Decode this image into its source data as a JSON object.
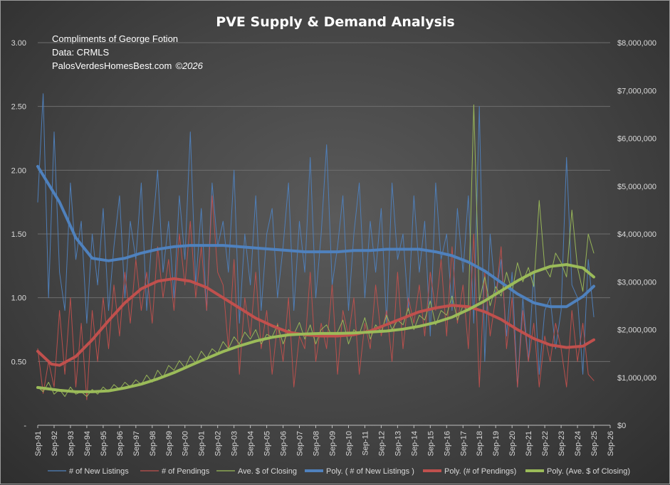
{
  "chart_data": {
    "type": "line",
    "title": "PVE Supply & Demand Analysis",
    "annotations": [
      "Compliments of George Fotion",
      "Data: CRMLS",
      "PalosVerdesHomesBest.com",
      "©2026"
    ],
    "y_left": {
      "ticks": [
        "-",
        "0.50",
        "1.00",
        "1.50",
        "2.00",
        "2.50",
        "3.00"
      ],
      "range": [
        0,
        3
      ]
    },
    "y_right": {
      "ticks": [
        "$0",
        "$1,000,000",
        "$2,000,000",
        "$3,000,000",
        "$4,000,000",
        "$5,000,000",
        "$6,000,000",
        "$7,000,000",
        "$8,000,000"
      ],
      "range": [
        0,
        8000000
      ]
    },
    "x_ticks": [
      "Sep-91",
      "Sep-92",
      "Sep-93",
      "Sep-94",
      "Sep-95",
      "Sep-96",
      "Sep-97",
      "Sep-98",
      "Sep-99",
      "Sep-00",
      "Sep-01",
      "Sep-02",
      "Sep-03",
      "Sep-04",
      "Sep-05",
      "Sep-06",
      "Sep-07",
      "Sep-08",
      "Sep-09",
      "Sep-10",
      "Sep-11",
      "Sep-12",
      "Sep-13",
      "Sep-14",
      "Sep-15",
      "Sep-16",
      "Sep-17",
      "Sep-18",
      "Sep-19",
      "Sep-20",
      "Sep-21",
      "Sep-22",
      "Sep-23",
      "Sep-24",
      "Sep-25",
      "Sep-26"
    ],
    "x_range": [
      1991.67,
      2026.67
    ],
    "grid": true,
    "legend_position": "bottom",
    "series": [
      {
        "name": "# of New Listings",
        "axis": "left",
        "color": "#4f81bd",
        "style": "thin",
        "x": [
          1991.67,
          1992.0,
          1992.33,
          1992.67,
          1993.0,
          1993.33,
          1993.67,
          1994.0,
          1994.33,
          1994.67,
          1995.0,
          1995.33,
          1995.67,
          1996.0,
          1996.33,
          1996.67,
          1997.0,
          1997.33,
          1997.67,
          1998.0,
          1998.33,
          1998.67,
          1999.0,
          1999.33,
          1999.67,
          2000.0,
          2000.33,
          2000.67,
          2001.0,
          2001.33,
          2001.67,
          2002.0,
          2002.33,
          2002.67,
          2003.0,
          2003.33,
          2003.67,
          2004.0,
          2004.33,
          2004.67,
          2005.0,
          2005.33,
          2005.67,
          2006.0,
          2006.33,
          2006.67,
          2007.0,
          2007.33,
          2007.67,
          2008.0,
          2008.33,
          2008.67,
          2009.0,
          2009.33,
          2009.67,
          2010.0,
          2010.33,
          2010.67,
          2011.0,
          2011.33,
          2011.67,
          2012.0,
          2012.33,
          2012.67,
          2013.0,
          2013.33,
          2013.67,
          2014.0,
          2014.33,
          2014.67,
          2015.0,
          2015.33,
          2015.67,
          2016.0,
          2016.33,
          2016.67,
          2017.0,
          2017.33,
          2017.67,
          2018.0,
          2018.33,
          2018.67,
          2019.0,
          2019.33,
          2019.67,
          2020.0,
          2020.33,
          2020.67,
          2021.0,
          2021.33,
          2021.67,
          2022.0,
          2022.33,
          2022.67,
          2023.0,
          2023.33,
          2023.67,
          2024.0,
          2024.33,
          2024.67,
          2025.0,
          2025.33,
          2025.67
        ],
        "y": [
          1.75,
          2.6,
          1.0,
          2.3,
          1.2,
          0.9,
          1.9,
          1.3,
          1.6,
          0.8,
          1.5,
          1.1,
          1.7,
          0.9,
          1.4,
          1.8,
          1.0,
          1.6,
          1.3,
          1.9,
          0.9,
          1.5,
          2.0,
          1.2,
          1.6,
          1.0,
          1.8,
          1.3,
          2.3,
          1.1,
          1.7,
          0.9,
          1.9,
          1.4,
          1.6,
          1.2,
          2.0,
          0.8,
          1.5,
          1.1,
          1.8,
          0.9,
          1.5,
          1.7,
          1.0,
          1.4,
          1.9,
          0.9,
          1.6,
          1.2,
          2.1,
          1.0,
          1.5,
          2.2,
          1.1,
          1.4,
          1.8,
          0.9,
          1.5,
          1.9,
          1.0,
          1.6,
          1.2,
          1.7,
          0.8,
          1.9,
          1.3,
          1.5,
          0.9,
          1.8,
          1.2,
          1.6,
          0.7,
          1.9,
          1.3,
          1.5,
          0.9,
          1.7,
          1.2,
          1.8,
          0.8,
          2.5,
          0.5,
          1.5,
          1.0,
          1.3,
          0.7,
          1.2,
          0.3,
          1.0,
          0.5,
          1.2,
          0.4,
          0.9,
          1.0,
          0.6,
          0.9,
          2.1,
          1.1,
          1.0,
          0.4,
          1.3,
          0.85
        ]
      },
      {
        "name": "# of Pendings",
        "axis": "left",
        "color": "#c0504d",
        "style": "thin",
        "x": [
          1991.67,
          1992.0,
          1992.33,
          1992.67,
          1993.0,
          1993.33,
          1993.67,
          1994.0,
          1994.33,
          1994.67,
          1995.0,
          1995.33,
          1995.67,
          1996.0,
          1996.33,
          1996.67,
          1997.0,
          1997.33,
          1997.67,
          1998.0,
          1998.33,
          1998.67,
          1999.0,
          1999.33,
          1999.67,
          2000.0,
          2000.33,
          2000.67,
          2001.0,
          2001.33,
          2001.67,
          2002.0,
          2002.33,
          2002.67,
          2003.0,
          2003.33,
          2003.67,
          2004.0,
          2004.33,
          2004.67,
          2005.0,
          2005.33,
          2005.67,
          2006.0,
          2006.33,
          2006.67,
          2007.0,
          2007.33,
          2007.67,
          2008.0,
          2008.33,
          2008.67,
          2009.0,
          2009.33,
          2009.67,
          2010.0,
          2010.33,
          2010.67,
          2011.0,
          2011.33,
          2011.67,
          2012.0,
          2012.33,
          2012.67,
          2013.0,
          2013.33,
          2013.67,
          2014.0,
          2014.33,
          2014.67,
          2015.0,
          2015.33,
          2015.67,
          2016.0,
          2016.33,
          2016.67,
          2017.0,
          2017.33,
          2017.67,
          2018.0,
          2018.33,
          2018.67,
          2019.0,
          2019.33,
          2019.67,
          2020.0,
          2020.33,
          2020.67,
          2021.0,
          2021.33,
          2021.67,
          2022.0,
          2022.33,
          2022.67,
          2023.0,
          2023.33,
          2023.67,
          2024.0,
          2024.33,
          2024.67,
          2025.0,
          2025.33,
          2025.67
        ],
        "y": [
          0.6,
          0.25,
          0.5,
          0.3,
          0.9,
          0.4,
          1.0,
          0.3,
          0.8,
          0.2,
          0.9,
          0.5,
          1.0,
          0.6,
          1.1,
          0.7,
          1.2,
          0.8,
          1.3,
          0.9,
          1.2,
          0.8,
          1.4,
          1.0,
          1.3,
          0.9,
          1.5,
          1.1,
          1.6,
          1.0,
          1.4,
          0.9,
          1.8,
          1.2,
          1.1,
          0.6,
          1.3,
          0.4,
          1.0,
          0.7,
          1.2,
          0.6,
          0.9,
          0.4,
          0.8,
          0.5,
          1.0,
          0.3,
          0.7,
          0.6,
          1.2,
          0.5,
          0.8,
          0.6,
          1.1,
          0.4,
          0.9,
          0.7,
          1.0,
          0.4,
          0.8,
          0.6,
          1.1,
          0.7,
          0.9,
          0.5,
          1.2,
          0.6,
          1.0,
          0.8,
          1.1,
          0.7,
          1.2,
          0.9,
          1.3,
          0.7,
          1.4,
          0.8,
          1.1,
          0.6,
          1.5,
          0.3,
          1.2,
          0.7,
          1.0,
          1.4,
          0.6,
          1.0,
          0.3,
          0.9,
          0.5,
          0.8,
          0.3,
          0.7,
          0.5,
          0.8,
          0.6,
          0.3,
          0.9,
          0.5,
          0.8,
          0.4,
          0.35
        ]
      },
      {
        "name": "Ave. $ of Closing",
        "axis": "right",
        "color": "#9bbb59",
        "style": "thin",
        "x": [
          1991.67,
          1992.0,
          1992.33,
          1992.67,
          1993.0,
          1993.33,
          1993.67,
          1994.0,
          1994.33,
          1994.67,
          1995.0,
          1995.33,
          1995.67,
          1996.0,
          1996.33,
          1996.67,
          1997.0,
          1997.33,
          1997.67,
          1998.0,
          1998.33,
          1998.67,
          1999.0,
          1999.33,
          1999.67,
          2000.0,
          2000.33,
          2000.67,
          2001.0,
          2001.33,
          2001.67,
          2002.0,
          2002.33,
          2002.67,
          2003.0,
          2003.33,
          2003.67,
          2004.0,
          2004.33,
          2004.67,
          2005.0,
          2005.33,
          2005.67,
          2006.0,
          2006.33,
          2006.67,
          2007.0,
          2007.33,
          2007.67,
          2008.0,
          2008.33,
          2008.67,
          2009.0,
          2009.33,
          2009.67,
          2010.0,
          2010.33,
          2010.67,
          2011.0,
          2011.33,
          2011.67,
          2012.0,
          2012.33,
          2012.67,
          2013.0,
          2013.33,
          2013.67,
          2014.0,
          2014.33,
          2014.67,
          2015.0,
          2015.33,
          2015.67,
          2016.0,
          2016.33,
          2016.67,
          2017.0,
          2017.33,
          2017.67,
          2018.0,
          2018.33,
          2018.67,
          2019.0,
          2019.33,
          2019.67,
          2020.0,
          2020.33,
          2020.67,
          2021.0,
          2021.33,
          2021.67,
          2022.0,
          2022.33,
          2022.67,
          2023.0,
          2023.33,
          2023.67,
          2024.0,
          2024.33,
          2024.67,
          2025.0,
          2025.33,
          2025.67
        ],
        "y": [
          800000,
          700000,
          900000,
          650000,
          750000,
          600000,
          800000,
          650000,
          700000,
          600000,
          750000,
          650000,
          800000,
          700000,
          850000,
          750000,
          900000,
          800000,
          950000,
          850000,
          1050000,
          900000,
          1150000,
          1000000,
          1250000,
          1150000,
          1350000,
          1200000,
          1450000,
          1300000,
          1550000,
          1400000,
          1600000,
          1500000,
          1750000,
          1600000,
          1850000,
          1700000,
          1950000,
          1800000,
          2000000,
          1700000,
          1900000,
          1850000,
          2100000,
          1700000,
          2000000,
          1900000,
          2150000,
          1800000,
          2100000,
          1700000,
          2000000,
          2100000,
          1850000,
          1950000,
          2200000,
          1700000,
          2000000,
          1900000,
          2250000,
          1800000,
          2100000,
          1950000,
          2300000,
          2000000,
          2200000,
          2100000,
          2450000,
          2000000,
          2300000,
          2200000,
          2600000,
          2100000,
          2400000,
          2300000,
          2700000,
          2200000,
          2500000,
          2400000,
          6700000,
          2600000,
          3100000,
          2500000,
          2900000,
          2700000,
          3200000,
          2800000,
          3400000,
          3000000,
          3300000,
          2900000,
          4700000,
          3300000,
          3100000,
          3600000,
          3400000,
          3100000,
          4500000,
          3300000,
          2800000,
          4000000,
          3600000
        ]
      },
      {
        "name": "Poly. ( # of New Listings )",
        "axis": "left",
        "color": "#4f81bd",
        "style": "thick",
        "x": [
          1991.67,
          1993.0,
          1994.0,
          1995.0,
          1996.0,
          1997.0,
          1998.0,
          1999.0,
          2000.0,
          2001.0,
          2002.0,
          2003.0,
          2004.0,
          2005.0,
          2006.0,
          2007.0,
          2008.0,
          2009.0,
          2010.0,
          2011.0,
          2012.0,
          2013.0,
          2014.0,
          2015.0,
          2016.0,
          2017.0,
          2018.0,
          2019.0,
          2020.0,
          2021.0,
          2022.0,
          2023.0,
          2024.0,
          2025.0,
          2025.67
        ],
        "y": [
          2.03,
          1.75,
          1.47,
          1.31,
          1.29,
          1.31,
          1.35,
          1.38,
          1.4,
          1.41,
          1.41,
          1.41,
          1.4,
          1.39,
          1.38,
          1.37,
          1.36,
          1.36,
          1.36,
          1.37,
          1.37,
          1.38,
          1.38,
          1.38,
          1.36,
          1.33,
          1.28,
          1.21,
          1.12,
          1.03,
          0.96,
          0.93,
          0.93,
          1.01,
          1.09
        ]
      },
      {
        "name": "Poly. (# of Pendings)",
        "axis": "left",
        "color": "#c0504d",
        "style": "thick",
        "x": [
          1991.67,
          1992.5,
          1993.0,
          1994.0,
          1995.0,
          1996.0,
          1997.0,
          1998.0,
          1999.0,
          2000.0,
          2001.0,
          2002.0,
          2003.0,
          2004.0,
          2005.0,
          2006.0,
          2007.0,
          2008.0,
          2009.0,
          2010.0,
          2011.0,
          2012.0,
          2013.0,
          2014.0,
          2015.0,
          2016.0,
          2017.0,
          2018.0,
          2019.0,
          2020.0,
          2021.0,
          2022.0,
          2023.0,
          2024.0,
          2025.0,
          2025.67
        ],
        "y": [
          0.58,
          0.48,
          0.47,
          0.54,
          0.67,
          0.82,
          0.96,
          1.07,
          1.13,
          1.15,
          1.13,
          1.08,
          1.0,
          0.92,
          0.84,
          0.78,
          0.73,
          0.71,
          0.7,
          0.7,
          0.71,
          0.74,
          0.79,
          0.84,
          0.89,
          0.92,
          0.94,
          0.93,
          0.89,
          0.83,
          0.75,
          0.68,
          0.63,
          0.61,
          0.62,
          0.67
        ]
      },
      {
        "name": "Poly. (Ave. $ of Closing)",
        "axis": "right",
        "color": "#9bbb59",
        "style": "thick",
        "x": [
          1991.67,
          1993.0,
          1994.0,
          1995.0,
          1996.0,
          1997.0,
          1998.0,
          1999.0,
          2000.0,
          2001.0,
          2002.0,
          2003.0,
          2004.0,
          2005.0,
          2006.0,
          2007.0,
          2008.0,
          2009.0,
          2010.0,
          2011.0,
          2012.0,
          2013.0,
          2014.0,
          2015.0,
          2016.0,
          2017.0,
          2018.0,
          2019.0,
          2020.0,
          2021.0,
          2022.0,
          2023.0,
          2024.0,
          2025.0,
          2025.67
        ],
        "y": [
          790000,
          730000,
          700000,
          700000,
          720000,
          780000,
          860000,
          970000,
          1100000,
          1250000,
          1400000,
          1540000,
          1660000,
          1760000,
          1840000,
          1890000,
          1910000,
          1920000,
          1920000,
          1930000,
          1950000,
          1970000,
          2010000,
          2070000,
          2150000,
          2260000,
          2420000,
          2600000,
          2810000,
          3020000,
          3200000,
          3320000,
          3360000,
          3290000,
          3100000
        ]
      }
    ]
  }
}
